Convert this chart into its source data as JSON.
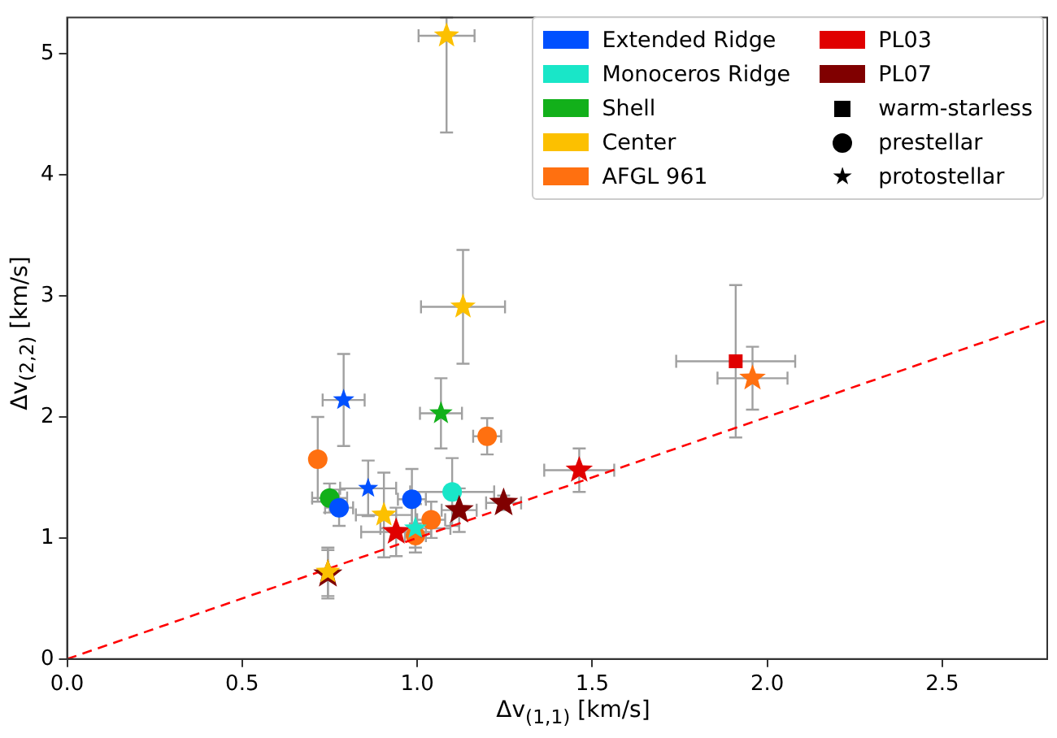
{
  "chart_data": {
    "type": "scatter",
    "xlabel": "Δv$_{(1,1)}$ [km/s]",
    "ylabel": "Δv$_{(2,2)}$ [km/s]",
    "xlim": [
      0,
      2.8
    ],
    "ylim": [
      0,
      5.3
    ],
    "xticks": [
      {
        "value": 0,
        "label": "0.0"
      },
      {
        "value": 0.5,
        "label": "0.5"
      },
      {
        "value": 1,
        "label": "1.0"
      },
      {
        "value": 1.5,
        "label": "1.5"
      },
      {
        "value": 2,
        "label": "2.0"
      },
      {
        "value": 2.5,
        "label": "2.5"
      }
    ],
    "yticks": [
      0,
      1,
      2,
      3,
      4,
      5
    ],
    "legend": "top right",
    "series": [
      {
        "name": "Extended Ridge",
        "color": "#0050ff",
        "marker": "star",
        "x": [
          0.86
        ],
        "values": [
          1.41
        ],
        "errors": [
          0.23
        ],
        "xerrors": [
          0.08
        ]
      },
      {
        "color": "#0050ff",
        "marker": "circle",
        "x": [
          0.777,
          0.985
        ],
        "values": [
          1.25,
          1.32
        ],
        "errors": [
          0.15,
          0.25
        ],
        "xerrors": [
          0.04,
          0.04
        ]
      },
      {
        "color": "#0050ff",
        "marker": "star",
        "x": [
          0.79
        ],
        "values": [
          2.14
        ],
        "errors": [
          0.38
        ],
        "xerrors": [
          0.06
        ]
      },
      {
        "name": "Monoceros Ridge",
        "color": "#19e6c8",
        "marker": "circle",
        "x": [
          1.1
        ],
        "values": [
          1.38
        ],
        "errors": [
          0.28
        ],
        "xerrors": [
          0.12
        ]
      },
      {
        "color": "#19e6c8",
        "marker": "star",
        "x": [
          0.995
        ],
        "values": [
          1.08
        ],
        "errors": [
          0.2
        ],
        "xerrors": [
          0.1
        ]
      },
      {
        "name": "Shell",
        "color": "#12b01a",
        "marker": "star",
        "x": [
          1.068
        ],
        "values": [
          2.03
        ],
        "errors": [
          0.29
        ],
        "xerrors": [
          0.06
        ]
      },
      {
        "color": "#12b01a",
        "marker": "circle",
        "x": [
          0.75
        ],
        "values": [
          1.33
        ],
        "errors": [
          0.12
        ],
        "xerrors": [
          0.05
        ]
      },
      {
        "name": "Center",
        "color": "#fcc000",
        "marker": "star",
        "x": [
          0.745
        ],
        "values": [
          0.72
        ],
        "errors": [
          0.2
        ],
        "xerrors": [
          null
        ]
      },
      {
        "color": "#fcc000",
        "marker": "star",
        "x": [
          0.905,
          1.084,
          1.131
        ],
        "values": [
          1.19,
          5.15,
          2.91
        ],
        "errors": [
          0.35,
          [
            4.35,
            5.3
          ],
          0.47
        ],
        "xerrors": [
          0.08,
          0.08,
          0.12
        ]
      },
      {
        "name": "AFGL 961",
        "color": "#ff7010",
        "marker": "circle",
        "x": [
          0.716,
          0.995,
          1.04,
          1.2
        ],
        "values": [
          1.65,
          1.02,
          1.15,
          1.84
        ],
        "errors": [
          0.35,
          0.1,
          0.15,
          0.15
        ],
        "xerrors": [
          null,
          0.03,
          0.04,
          0.04
        ]
      },
      {
        "color": "#ff7010",
        "marker": "star",
        "x": [
          1.958
        ],
        "values": [
          2.32
        ],
        "errors": [
          0.26
        ],
        "xerrors": [
          0.1
        ]
      },
      {
        "name": "PL03",
        "color": "#e00000",
        "marker": "star",
        "x": [
          1.463
        ],
        "values": [
          1.56
        ],
        "errors": [
          0.18
        ],
        "xerrors": [
          0.1
        ]
      },
      {
        "color": "#e00000",
        "marker": "star",
        "x": [
          0.94
        ],
        "values": [
          1.05
        ],
        "errors": [
          0.2
        ],
        "xerrors": [
          0.1
        ]
      },
      {
        "color": "#e00000",
        "marker": "square",
        "x": [
          1.91
        ],
        "values": [
          2.46
        ],
        "errors": [
          0.63
        ],
        "xerrors": [
          0.17
        ]
      },
      {
        "name": "PL07",
        "color": "#800000",
        "marker": "star",
        "x": [
          0.745,
          1.12,
          1.247
        ],
        "values": [
          0.7,
          1.23,
          1.29
        ],
        "errors": [
          0.2,
          0.18,
          0.06
        ],
        "xerrors": [
          null,
          0.05,
          0.05
        ]
      },
      {
        "name": "warm-starless",
        "color": "#000000",
        "marker": "square"
      },
      {
        "name": "prestellar",
        "color": "#000000",
        "marker": "circle"
      },
      {
        "name": "protostellar",
        "color": "#000000",
        "marker": "star"
      },
      {
        "type": "line",
        "color": "#ff0000",
        "marker": "none",
        "line_style": "dashed",
        "x": [
          0,
          2.8
        ],
        "values": [
          0,
          2.8
        ]
      }
    ]
  }
}
